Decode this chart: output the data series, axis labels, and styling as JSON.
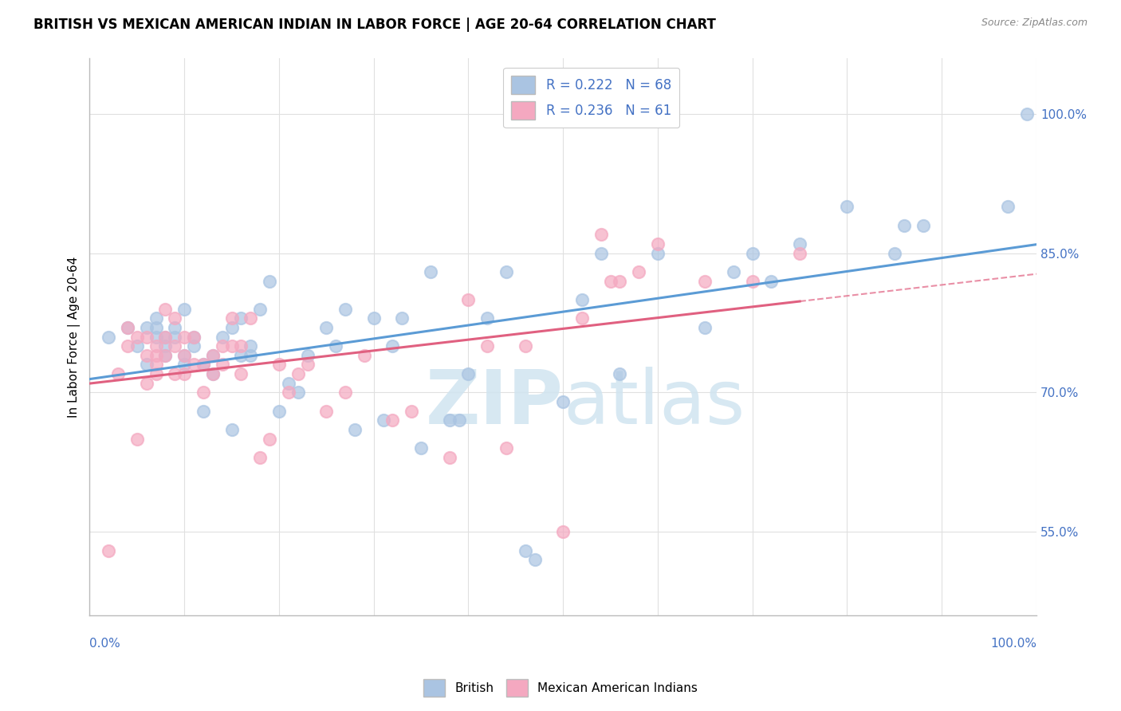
{
  "title": "BRITISH VS MEXICAN AMERICAN INDIAN IN LABOR FORCE | AGE 20-64 CORRELATION CHART",
  "source": "Source: ZipAtlas.com",
  "ylabel": "In Labor Force | Age 20-64",
  "yticks": [
    "55.0%",
    "70.0%",
    "85.0%",
    "100.0%"
  ],
  "ytick_vals": [
    0.55,
    0.7,
    0.85,
    1.0
  ],
  "xlim": [
    0.0,
    1.0
  ],
  "ylim": [
    0.46,
    1.06
  ],
  "R_british": 0.222,
  "N_british": 68,
  "R_mexican": 0.236,
  "N_mexican": 61,
  "british_color": "#aac4e2",
  "mexican_color": "#f4a8c0",
  "trend_british_color": "#5b9bd5",
  "trend_mexican_color": "#e06080",
  "watermark_color": "#d0e4f0",
  "british_x": [
    0.02,
    0.04,
    0.05,
    0.06,
    0.06,
    0.07,
    0.07,
    0.07,
    0.08,
    0.08,
    0.08,
    0.09,
    0.09,
    0.1,
    0.1,
    0.1,
    0.11,
    0.11,
    0.12,
    0.12,
    0.13,
    0.13,
    0.14,
    0.15,
    0.15,
    0.16,
    0.16,
    0.17,
    0.17,
    0.18,
    0.19,
    0.2,
    0.21,
    0.22,
    0.23,
    0.25,
    0.26,
    0.27,
    0.28,
    0.3,
    0.31,
    0.32,
    0.33,
    0.35,
    0.36,
    0.38,
    0.39,
    0.4,
    0.42,
    0.44,
    0.46,
    0.47,
    0.5,
    0.52,
    0.54,
    0.56,
    0.6,
    0.65,
    0.68,
    0.7,
    0.72,
    0.75,
    0.8,
    0.85,
    0.86,
    0.88,
    0.97,
    0.99
  ],
  "british_y": [
    0.76,
    0.77,
    0.75,
    0.77,
    0.73,
    0.77,
    0.76,
    0.78,
    0.75,
    0.74,
    0.76,
    0.76,
    0.77,
    0.73,
    0.74,
    0.79,
    0.75,
    0.76,
    0.68,
    0.73,
    0.72,
    0.74,
    0.76,
    0.66,
    0.77,
    0.74,
    0.78,
    0.74,
    0.75,
    0.79,
    0.82,
    0.68,
    0.71,
    0.7,
    0.74,
    0.77,
    0.75,
    0.79,
    0.66,
    0.78,
    0.67,
    0.75,
    0.78,
    0.64,
    0.83,
    0.67,
    0.67,
    0.72,
    0.78,
    0.83,
    0.53,
    0.52,
    0.69,
    0.8,
    0.85,
    0.72,
    0.85,
    0.77,
    0.83,
    0.85,
    0.82,
    0.86,
    0.9,
    0.85,
    0.88,
    0.88,
    0.9,
    1.0
  ],
  "mexican_x": [
    0.02,
    0.03,
    0.04,
    0.04,
    0.05,
    0.05,
    0.06,
    0.06,
    0.06,
    0.07,
    0.07,
    0.07,
    0.07,
    0.08,
    0.08,
    0.08,
    0.09,
    0.09,
    0.09,
    0.1,
    0.1,
    0.1,
    0.11,
    0.11,
    0.12,
    0.12,
    0.13,
    0.13,
    0.14,
    0.14,
    0.15,
    0.15,
    0.16,
    0.16,
    0.17,
    0.18,
    0.19,
    0.2,
    0.21,
    0.22,
    0.23,
    0.25,
    0.27,
    0.29,
    0.32,
    0.34,
    0.38,
    0.4,
    0.42,
    0.44,
    0.46,
    0.5,
    0.52,
    0.54,
    0.55,
    0.56,
    0.58,
    0.6,
    0.65,
    0.7,
    0.75
  ],
  "mexican_y": [
    0.53,
    0.72,
    0.75,
    0.77,
    0.65,
    0.76,
    0.74,
    0.71,
    0.76,
    0.74,
    0.73,
    0.72,
    0.75,
    0.76,
    0.74,
    0.79,
    0.72,
    0.75,
    0.78,
    0.72,
    0.74,
    0.76,
    0.73,
    0.76,
    0.7,
    0.73,
    0.72,
    0.74,
    0.73,
    0.75,
    0.75,
    0.78,
    0.72,
    0.75,
    0.78,
    0.63,
    0.65,
    0.73,
    0.7,
    0.72,
    0.73,
    0.68,
    0.7,
    0.74,
    0.67,
    0.68,
    0.63,
    0.8,
    0.75,
    0.64,
    0.75,
    0.55,
    0.78,
    0.87,
    0.82,
    0.82,
    0.83,
    0.86,
    0.82,
    0.82,
    0.85
  ],
  "grid_color": "#e0e0e0",
  "axis_label_color": "#4472c4",
  "axis_label_fontsize": 11,
  "title_fontsize": 12,
  "source_fontsize": 9,
  "legend_fontsize": 12
}
